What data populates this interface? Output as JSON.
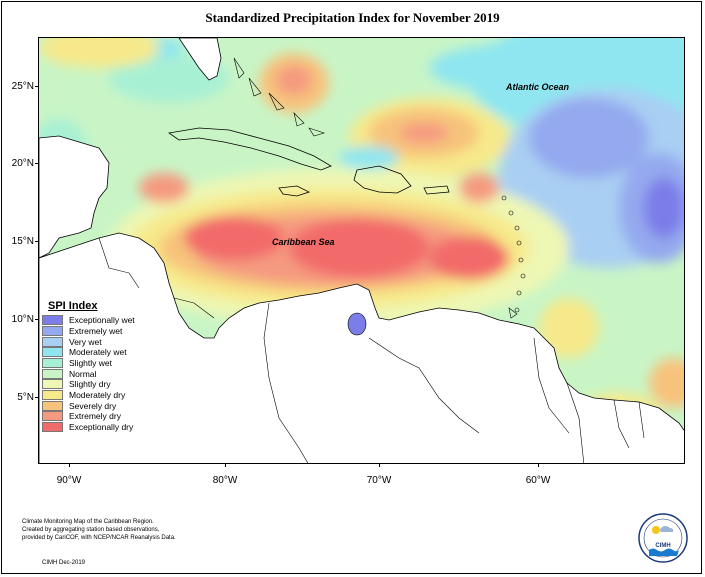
{
  "title": "Standardized Precipitation Index for November 2019",
  "map": {
    "labels": {
      "atlantic": "Atlantic Ocean",
      "caribbean": "Caribbean Sea"
    },
    "lat_ticks": [
      "25°N",
      "20°N",
      "15°N",
      "10°N",
      "5°N"
    ],
    "lon_ticks": [
      "90°W",
      "80°W",
      "70°W",
      "60°W"
    ]
  },
  "legend": {
    "title": "SPI Index",
    "items": [
      {
        "label": "Exceptionally wet",
        "color": "#7b7de8"
      },
      {
        "label": "Extremely wet",
        "color": "#94a9ef"
      },
      {
        "label": "Very wet",
        "color": "#a9cff3"
      },
      {
        "label": "Moderately wet",
        "color": "#8fe6f0"
      },
      {
        "label": "Slightly wet",
        "color": "#a8f0d4"
      },
      {
        "label": "Normal",
        "color": "#c9f5c6"
      },
      {
        "label": "Slightly dry",
        "color": "#eef7b4"
      },
      {
        "label": "Moderately dry",
        "color": "#f7e98a"
      },
      {
        "label": "Severely dry",
        "color": "#f7c37b"
      },
      {
        "label": "Extremely dry",
        "color": "#f59a80"
      },
      {
        "label": "Exceptionally dry",
        "color": "#f26b6b"
      }
    ]
  },
  "caption": {
    "line1": "Climate Monitoring Map of the Caribbean Region.",
    "line2": "Created by aggregating station based observations,",
    "line3": "provided by CariCOF, with NCEP/NCAR Reanalysis Data.",
    "date": "CIMH Dec-2019"
  },
  "logo": {
    "text": "CIMH"
  }
}
